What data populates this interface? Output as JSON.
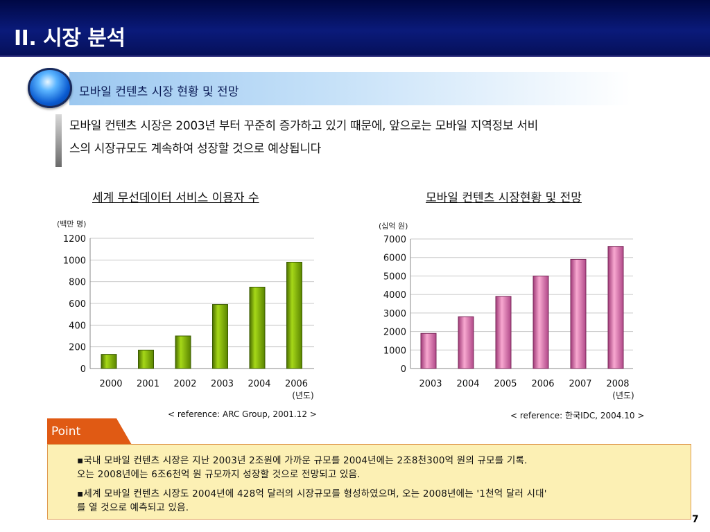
{
  "header": {
    "title": "II. 시장 분석",
    "section_label": "모바일 컨텐츠 시장 현황 및 전망"
  },
  "intro": {
    "line1": "모바일 컨텐츠 시장은 2003년 부터 꾸준히 증가하고 있기 때문에, 앞으로는 모바일 지역정보 서비",
    "line2": "스의 시장규모도 계속하여 성장할 것으로 예상됩니다"
  },
  "chart_data": [
    {
      "type": "bar",
      "title": "세계 무선데이터 서비스 이용자 수",
      "unit": "(백만 명)",
      "xunit": "(년도)",
      "categories": [
        "2000",
        "2001",
        "2002",
        "2003",
        "2004",
        "2006"
      ],
      "values": [
        130,
        170,
        300,
        590,
        750,
        980
      ],
      "yticks": [
        "0",
        "200",
        "400",
        "600",
        "800",
        "1000",
        "1200"
      ],
      "ylim": [
        0,
        1200
      ],
      "bar_color": "#86b800",
      "grid": true,
      "reference": "< reference: ARC Group, 2001.12 >"
    },
    {
      "type": "bar",
      "title": "모바일 컨텐츠 시장현황 및 전망",
      "unit": "(십억 원)",
      "xunit": "(년도)",
      "categories": [
        "2003",
        "2004",
        "2005",
        "2006",
        "2007",
        "2008"
      ],
      "values": [
        1900,
        2800,
        3900,
        5000,
        5900,
        6600
      ],
      "yticks": [
        "0",
        "1000",
        "2000",
        "3000",
        "4000",
        "5000",
        "6000",
        "7000"
      ],
      "ylim": [
        0,
        7000
      ],
      "bar_color": "#e878b4",
      "grid": true,
      "reference": "< reference: 한국IDC, 2004.10 >"
    }
  ],
  "point": {
    "tab_label": "Point",
    "item1_line1": "▪국내 모바일 컨텐츠 시장은 지난 2003년 2조원에 가까운 규모를 2004년에는 2조8천300억 원의 규모를 기록.",
    "item1_line2": "오는 2008년에는 6조6천억 원 규모까지 성장할 것으로 전망되고 있음.",
    "item2_line1": "▪세계 모바일 컨텐츠 시장도 2004년에 428억 달러의 시장규모를 형성하였으며, 오는 2008년에는 '1천억 달러 시대'",
    "item2_line2": "를 열 것으로 예측되고 있음."
  },
  "page_number": "7"
}
